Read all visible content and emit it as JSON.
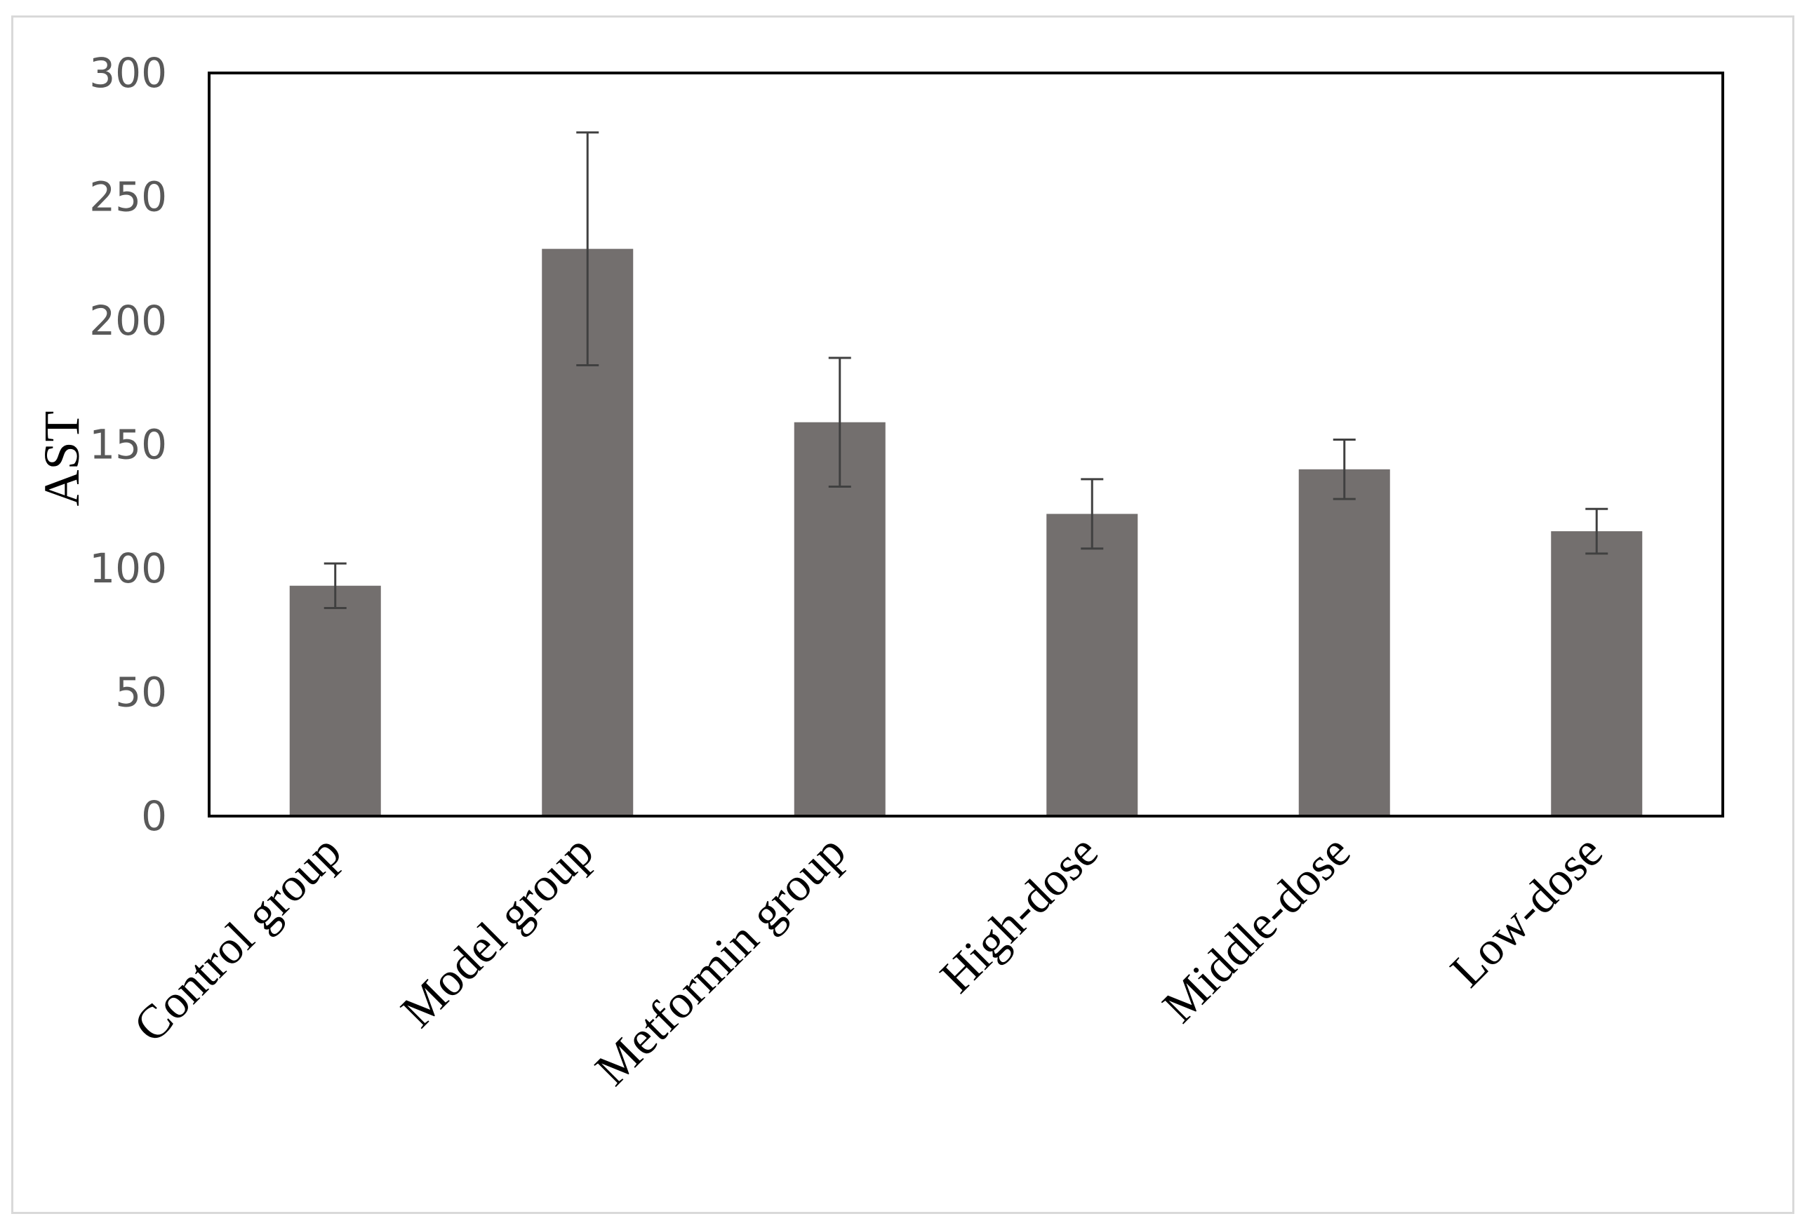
{
  "chart_data": {
    "type": "bar",
    "title": "",
    "xlabel": "",
    "ylabel": "AST",
    "ylim": [
      0,
      300
    ],
    "yticks": [
      0,
      50,
      100,
      150,
      200,
      250,
      300
    ],
    "grid": false,
    "legend": "none",
    "categories": [
      "Control group",
      "Model group",
      "Metformin group",
      "High-dose",
      "Middle-dose",
      "Low-dose"
    ],
    "values": [
      93,
      229,
      159,
      122,
      140,
      115
    ],
    "error": [
      9,
      47,
      26,
      14,
      12,
      9
    ],
    "bar_color": "#736f6e",
    "error_color": "#404040"
  }
}
